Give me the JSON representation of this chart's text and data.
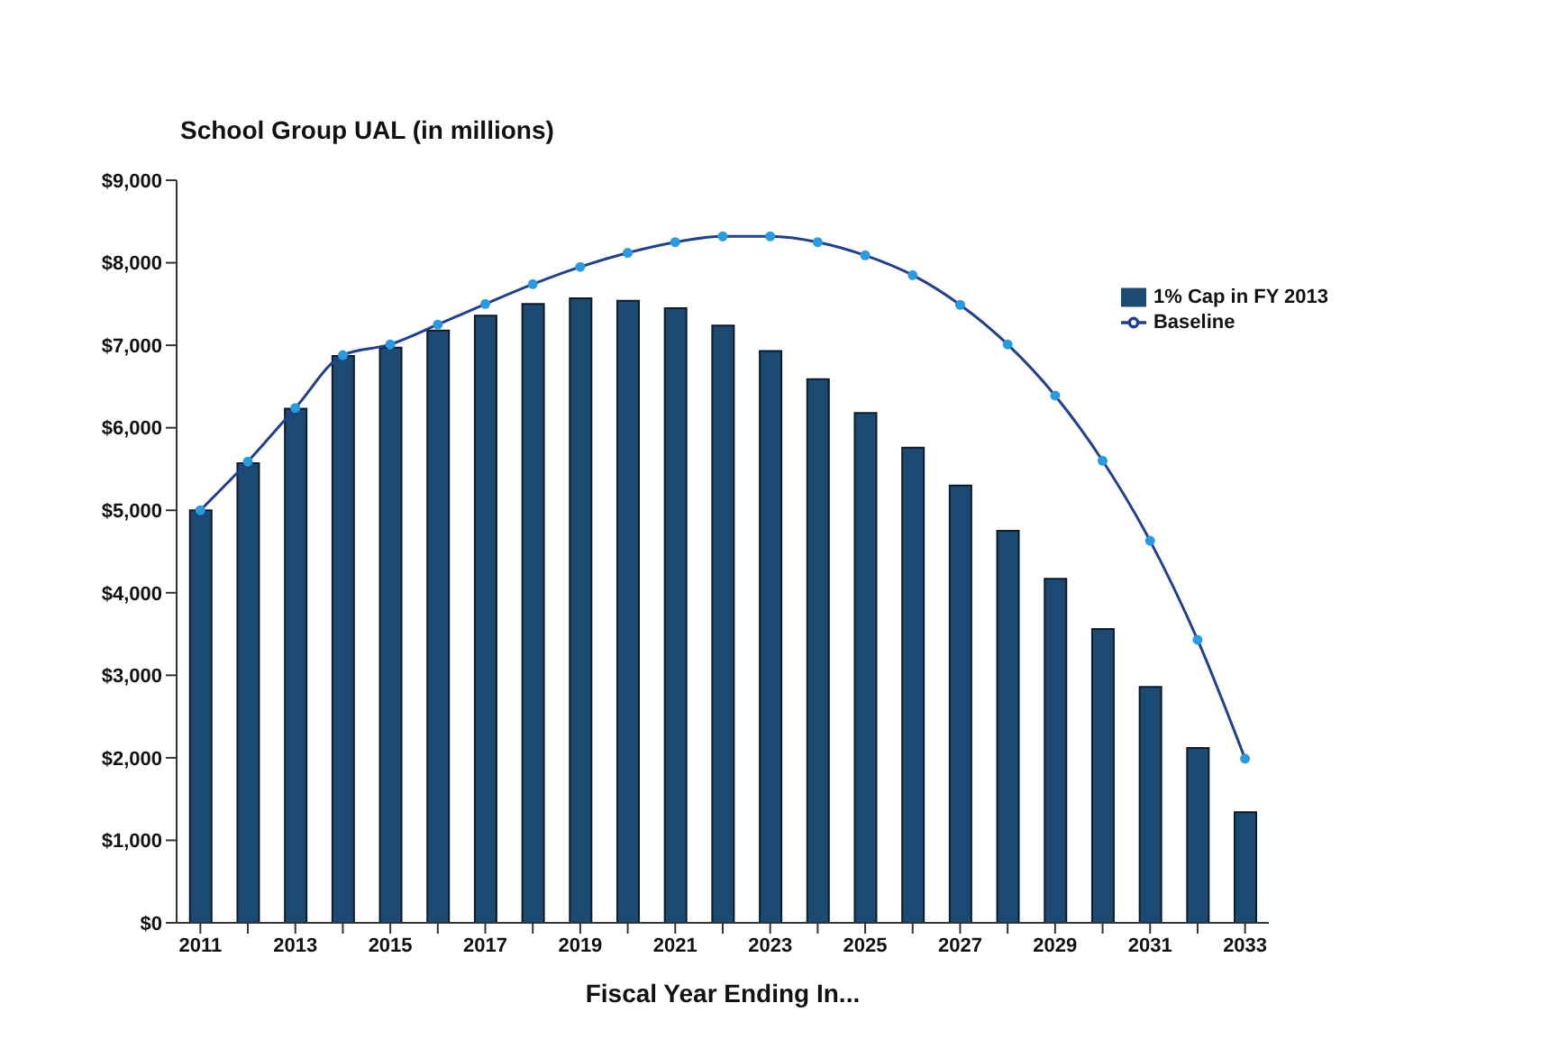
{
  "chart_data": {
    "type": "bar",
    "title": "School Group UAL (in millions)",
    "xlabel": "Fiscal Year Ending In...",
    "categories": [
      "2011",
      null,
      "2013",
      null,
      "2015",
      null,
      "2017",
      null,
      "2019",
      null,
      "2021",
      null,
      "2023",
      null,
      "2025",
      null,
      "2027",
      null,
      "2029",
      null,
      "2031",
      null,
      "2033"
    ],
    "series": [
      {
        "name": "1% Cap in FY 2013",
        "color": "#1b4a72",
        "values": [
          5000,
          5570,
          6230,
          6870,
          6970,
          7180,
          7360,
          7500,
          7570,
          7540,
          7450,
          7240,
          6930,
          6590,
          6180,
          5760,
          5300,
          4750,
          4170,
          3560,
          2860,
          2120,
          1340
        ]
      },
      {
        "name": "Baseline",
        "type": "line",
        "color": "#1f3f8f",
        "marker": "circle",
        "values": [
          5000,
          5590,
          6240,
          6880,
          7010,
          7250,
          7500,
          7740,
          7950,
          8120,
          8250,
          8320,
          8320,
          8250,
          8090,
          7850,
          7490,
          7010,
          6390,
          5600,
          4630,
          3430,
          1990
        ]
      }
    ],
    "ylim": [
      0,
      9000
    ],
    "yticks": [
      {
        "value": 0,
        "label": "$0"
      },
      {
        "value": 1000,
        "label": "$1,000"
      },
      {
        "value": 2000,
        "label": "$2,000"
      },
      {
        "value": 3000,
        "label": "$3,000"
      },
      {
        "value": 4000,
        "label": "$4,000"
      },
      {
        "value": 5000,
        "label": "$5,000"
      },
      {
        "value": 6000,
        "label": "$6,000"
      },
      {
        "value": 7000,
        "label": "$7,000"
      },
      {
        "value": 8000,
        "label": "$8,000"
      },
      {
        "value": 9000,
        "label": "$9,000"
      }
    ],
    "legend": "top right",
    "grid": false
  }
}
